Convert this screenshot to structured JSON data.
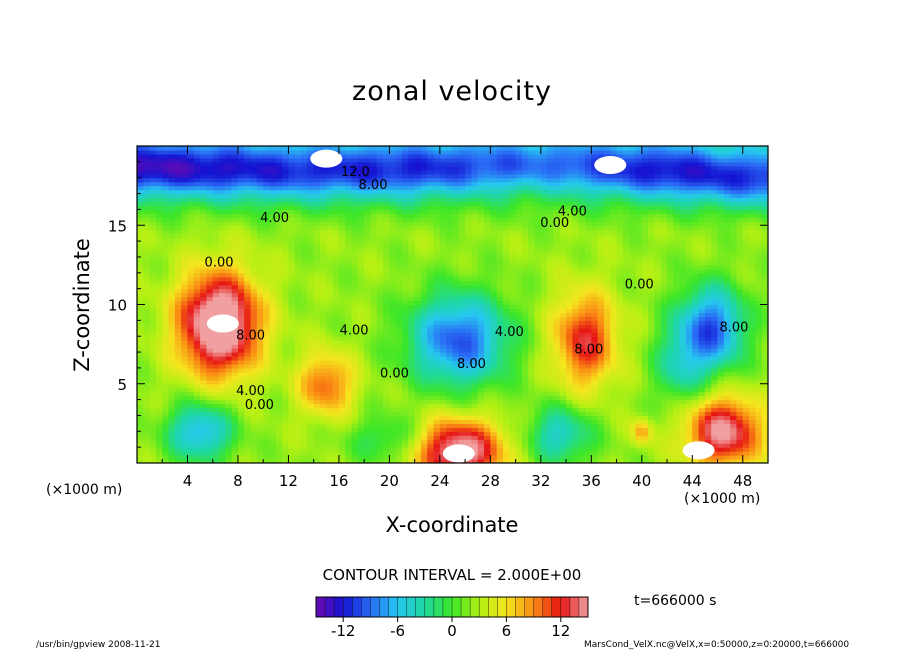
{
  "chart_data": {
    "type": "heatmap",
    "title": "zonal velocity",
    "xlabel": "X-coordinate",
    "ylabel": "Z-coordinate",
    "x_unit": "(×1000 m)",
    "xlim": [
      0,
      50
    ],
    "ylim": [
      0,
      20
    ],
    "x_ticks": [
      4,
      8,
      12,
      16,
      20,
      24,
      28,
      32,
      36,
      40,
      44,
      48
    ],
    "y_ticks": [
      5,
      10,
      15
    ],
    "contour_interval_label": "CONTOUR INTERVAL = 2.000E+00",
    "colorbar": {
      "range": [
        -15,
        15
      ],
      "ticks": [
        -12,
        -6,
        0,
        6,
        12
      ],
      "colors": [
        "#6a0ab0",
        "#1414d2",
        "#2a6cf5",
        "#26c8f0",
        "#1ed7a0",
        "#3ce628",
        "#b4f014",
        "#f5e61e",
        "#fa8c14",
        "#e61414",
        "#f0a0a0"
      ]
    },
    "contour_labels": [
      {
        "text": "12.0",
        "x": 17.3,
        "y": 18.1
      },
      {
        "text": "8.00",
        "x": 18.7,
        "y": 17.3
      },
      {
        "text": "4.00",
        "x": 10.9,
        "y": 15.2
      },
      {
        "text": "4.00",
        "x": 34.5,
        "y": 15.6
      },
      {
        "text": "0.00",
        "x": 33.1,
        "y": 14.9
      },
      {
        "text": "0.00",
        "x": 6.5,
        "y": 12.4
      },
      {
        "text": "0.00",
        "x": 39.8,
        "y": 11.0
      },
      {
        "text": "8.00",
        "x": 9.0,
        "y": 7.8
      },
      {
        "text": "8.00",
        "x": 47.3,
        "y": 8.3
      },
      {
        "text": "4.00",
        "x": 17.2,
        "y": 8.1
      },
      {
        "text": "4.00",
        "x": 29.5,
        "y": 8.0
      },
      {
        "text": "8.00",
        "x": 35.8,
        "y": 6.9
      },
      {
        "text": "8.00",
        "x": 26.5,
        "y": 6.0
      },
      {
        "text": "0.00",
        "x": 20.4,
        "y": 5.4
      },
      {
        "text": "4.00",
        "x": 9.0,
        "y": 4.3
      },
      {
        "text": "0.00",
        "x": 9.7,
        "y": 3.4
      }
    ],
    "field_blobs": [
      {
        "x": 6.5,
        "y": 8.8,
        "sx": 3.2,
        "sy": 3.2,
        "v": 17
      },
      {
        "x": 25.5,
        "y": 0.8,
        "sx": 3.5,
        "sy": 2.0,
        "v": 14
      },
      {
        "x": 35.5,
        "y": 7.8,
        "sx": 2.5,
        "sy": 3.0,
        "v": 10
      },
      {
        "x": 15.0,
        "y": 5.0,
        "sx": 2.2,
        "sy": 2.0,
        "v": 8
      },
      {
        "x": 46.5,
        "y": 2.0,
        "sx": 3.0,
        "sy": 2.2,
        "v": 13
      },
      {
        "x": 40.0,
        "y": 2.0,
        "sx": 0.8,
        "sy": 0.8,
        "v": 6
      },
      {
        "x": 25.5,
        "y": 7.8,
        "sx": 3.8,
        "sy": 2.8,
        "v": -12
      },
      {
        "x": 45.5,
        "y": 8.5,
        "sx": 2.6,
        "sy": 2.6,
        "v": -12
      },
      {
        "x": 5.0,
        "y": 2.0,
        "sx": 2.5,
        "sy": 1.8,
        "v": -9
      },
      {
        "x": 33.5,
        "y": 1.8,
        "sx": 2.5,
        "sy": 1.8,
        "v": -7
      },
      {
        "x": 43.0,
        "y": 6.0,
        "sx": 2.0,
        "sy": 2.5,
        "v": -5
      },
      {
        "x": 20.0,
        "y": 1.5,
        "sx": 3.0,
        "sy": 1.5,
        "v": -4
      }
    ],
    "upper_jet": [
      {
        "x": 2,
        "y": 18.6,
        "v": -13
      },
      {
        "x": 12,
        "y": 18.4,
        "v": -11
      },
      {
        "x": 22,
        "y": 18.5,
        "v": -11
      },
      {
        "x": 32,
        "y": 18.8,
        "v": -8
      },
      {
        "x": 42,
        "y": 18.4,
        "v": -12
      },
      {
        "x": 48,
        "y": 18.0,
        "v": -11
      }
    ],
    "bright_spots": [
      {
        "x": 6.8,
        "y": 8.8
      },
      {
        "x": 25.5,
        "y": 0.6
      },
      {
        "x": 37.5,
        "y": 18.8
      },
      {
        "x": 15.0,
        "y": 19.2
      },
      {
        "x": 44.5,
        "y": 0.8
      }
    ]
  },
  "time_label": "t=666000 s",
  "footer_left": "/usr/bin/gpview  2008-11-21",
  "footer_right": "MarsCond_VelX.nc@VelX,x=0:50000,z=0:20000,t=666000"
}
